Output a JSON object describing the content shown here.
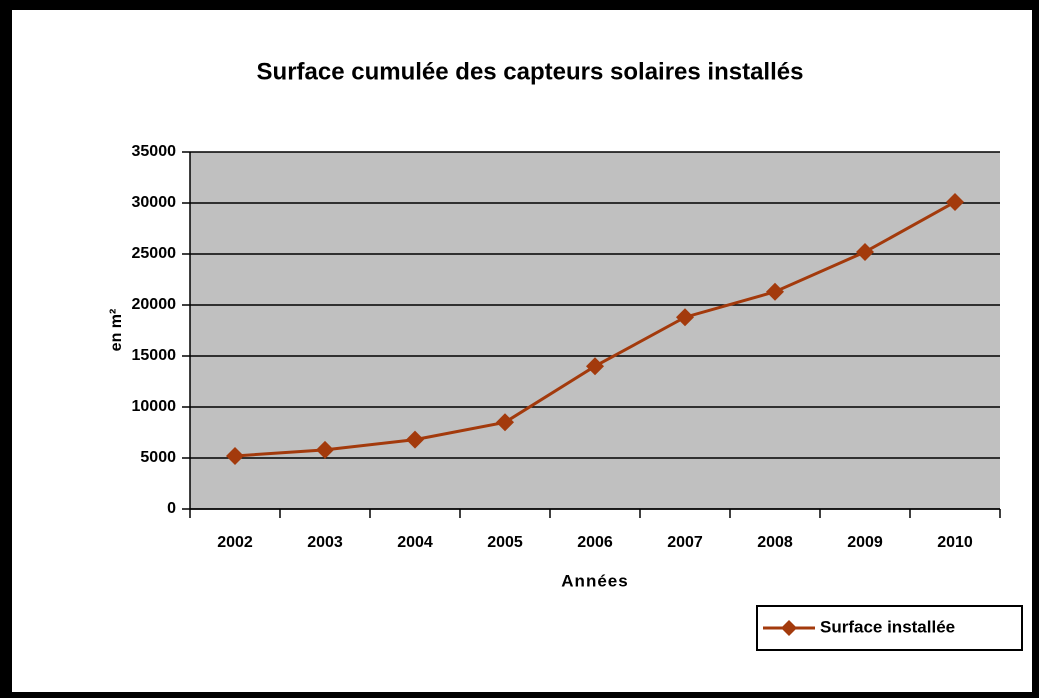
{
  "chart_data": {
    "type": "line",
    "title": "Surface cumulée des capteurs solaires installés",
    "x_label": "Années",
    "y_label": "en m²",
    "categories": [
      "2002",
      "2003",
      "2004",
      "2005",
      "2006",
      "2007",
      "2008",
      "2009",
      "2010"
    ],
    "series": [
      {
        "name": "Surface installée",
        "color": "#a33a0c",
        "values": [
          5200,
          5800,
          6800,
          8500,
          14000,
          18800,
          21300,
          25200,
          30100
        ]
      }
    ],
    "ylim": [
      0,
      35000
    ],
    "yticks": [
      0,
      5000,
      10000,
      15000,
      20000,
      25000,
      30000,
      35000
    ],
    "grid": true,
    "legend": "bottom-right",
    "plot_background": "#c0c0c0"
  }
}
